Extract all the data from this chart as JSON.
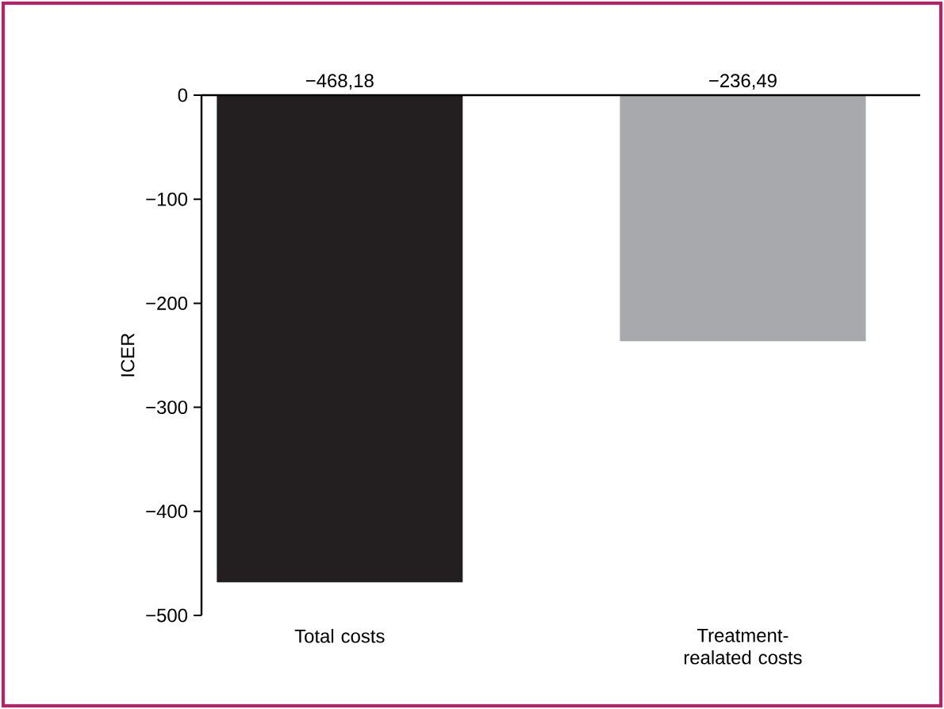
{
  "chart_data": {
    "type": "bar",
    "ylabel": "ICER",
    "categories": [
      "Total costs",
      "Treatment-realated costs"
    ],
    "values": [
      -468.18,
      -236.49
    ],
    "value_labels": [
      "−468,18",
      "−236,49"
    ],
    "colors": [
      "#231f20",
      "#a7a9ac"
    ],
    "ylim": [
      -500,
      0
    ],
    "yticks": [
      {
        "value": -500,
        "label": "−500"
      },
      {
        "value": -400,
        "label": "−400"
      },
      {
        "value": -300,
        "label": "−300"
      },
      {
        "value": -200,
        "label": "−200"
      },
      {
        "value": -100,
        "label": "−100"
      },
      0
    ]
  }
}
